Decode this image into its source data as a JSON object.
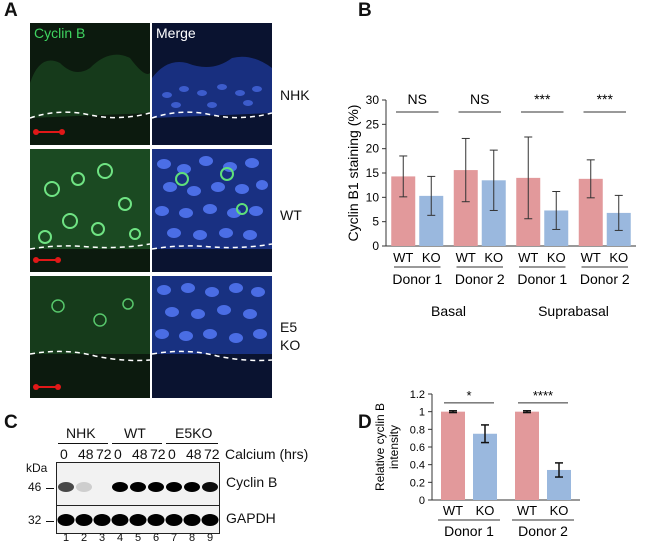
{
  "panel_a": {
    "letter": "A",
    "col_labels": [
      "Cyclin B",
      "Merge"
    ],
    "row_labels": [
      "NHK",
      "WT",
      "E5\nKO"
    ]
  },
  "panel_b": {
    "letter": "B"
  },
  "panel_c": {
    "letter": "C",
    "groups": [
      "NHK",
      "WT",
      "E5KO"
    ],
    "times": [
      "0",
      "48",
      "72",
      "0",
      "48",
      "72",
      "0",
      "48",
      "72"
    ],
    "calcium_label": "Calcium (hrs)",
    "kda_label": "kDa",
    "marker_46": "46",
    "marker_32": "32",
    "band_labels": [
      "Cyclin B",
      "GAPDH"
    ],
    "lanes": [
      "1",
      "2",
      "3",
      "4",
      "5",
      "6",
      "7",
      "8",
      "9"
    ]
  },
  "panel_d": {
    "letter": "D"
  },
  "colors": {
    "wt": "#e2999b",
    "ko": "#9ab8de",
    "scalebar": "#e01818"
  },
  "chart_data": [
    {
      "id": "B",
      "type": "bar",
      "ylabel": "Cyclin B1 staining (%)",
      "ylim": [
        0,
        30
      ],
      "yticks": [
        0,
        5,
        10,
        15,
        20,
        25,
        30
      ],
      "categories": [
        "WT",
        "KO",
        "WT",
        "KO",
        "WT",
        "KO",
        "WT",
        "KO"
      ],
      "donors": [
        "Donor 1",
        "Donor 2",
        "Donor 1",
        "Donor 2"
      ],
      "groups": [
        "Basal",
        "Suprabasal"
      ],
      "values": [
        14.3,
        10.3,
        15.6,
        13.5,
        14.0,
        7.3,
        13.8,
        6.8
      ],
      "errors": [
        4.2,
        4.0,
        6.5,
        6.2,
        8.4,
        3.9,
        3.9,
        3.6
      ],
      "significance": [
        "NS",
        "NS",
        "***",
        "***"
      ]
    },
    {
      "id": "D",
      "type": "bar",
      "ylabel": "Relative cyclin B\nintensity",
      "ylim": [
        0,
        1.2
      ],
      "yticks": [
        "0",
        "0.2",
        "0.4",
        "0.6",
        "0.8",
        "1",
        "1.2"
      ],
      "categories": [
        "WT",
        "KO",
        "WT",
        "KO"
      ],
      "donors": [
        "Donor 1",
        "Donor 2"
      ],
      "values": [
        1.0,
        0.75,
        1.0,
        0.34
      ],
      "errors": [
        0.01,
        0.1,
        0.01,
        0.08
      ],
      "significance": [
        "*",
        "****"
      ]
    }
  ]
}
